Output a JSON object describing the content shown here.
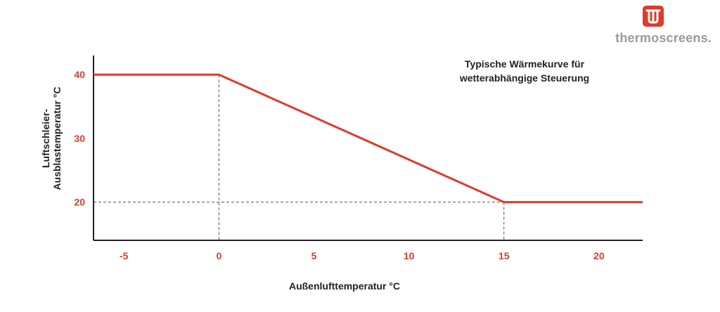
{
  "brand": {
    "name": "thermoscreens",
    "suffix": "."
  },
  "colors": {
    "accent": "#e03a2b",
    "axis": "#222222",
    "text": "#222222",
    "guide": "#555555",
    "logo_text": "#9a9a9a"
  },
  "chart_data": {
    "type": "line",
    "title": "Typische Wärmekurve für\nwetterabhängige Steuerung",
    "xlabel": "Außenlufttemperatur °C",
    "ylabel": "Luftschleier-\nAusblastemperatur °C",
    "xlim": [
      -6.6,
      22.3
    ],
    "ylim": [
      14.0,
      43.0
    ],
    "xticks": [
      -5,
      0,
      5,
      10,
      15,
      20
    ],
    "yticks": [
      20,
      30,
      40
    ],
    "series": [
      {
        "values": [
          [
            -6.6,
            40
          ],
          [
            0,
            40
          ],
          [
            15,
            20
          ],
          [
            22.3,
            20
          ]
        ]
      }
    ],
    "reference_lines": [
      {
        "x": 0,
        "y": 40
      },
      {
        "x": 15,
        "y": 20
      }
    ],
    "grid": false
  }
}
